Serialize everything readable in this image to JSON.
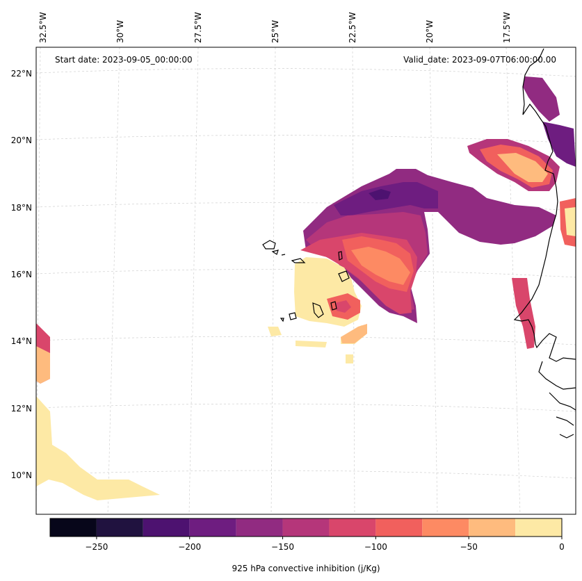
{
  "header": {
    "start_date": "Start date: 2023-09-05_00:00:00",
    "valid_date": "Valid_date: 2023-09-07T06:00:00.00"
  },
  "grid": {
    "longitude_labels": [
      "32.5°W",
      "30°W",
      "27.5°W",
      "25°W",
      "22.5°W",
      "20°W",
      "17.5°W"
    ],
    "latitude_labels": [
      "22°N",
      "20°N",
      "18°N",
      "16°N",
      "14°N",
      "12°N",
      "10°N"
    ],
    "gridlines": "dashed light gray"
  },
  "colorbar": {
    "title": "925 hPa convective inhibition (j/Kg)",
    "tick_labels": [
      "−250",
      "−200",
      "−150",
      "−100",
      "−50",
      "0"
    ],
    "levels": [
      -275,
      -250,
      -225,
      -200,
      -175,
      -150,
      -125,
      -100,
      -75,
      -50,
      -25,
      0
    ],
    "colors": [
      "#07061a",
      "#20123f",
      "#4d1270",
      "#6e1d80",
      "#912b81",
      "#b5367a",
      "#d9466b",
      "#f1605d",
      "#fd8a63",
      "#febb7e",
      "#fde9a5"
    ]
  },
  "map_colors": {
    "coastline": "#000000",
    "land_background": "#ffffff"
  }
}
